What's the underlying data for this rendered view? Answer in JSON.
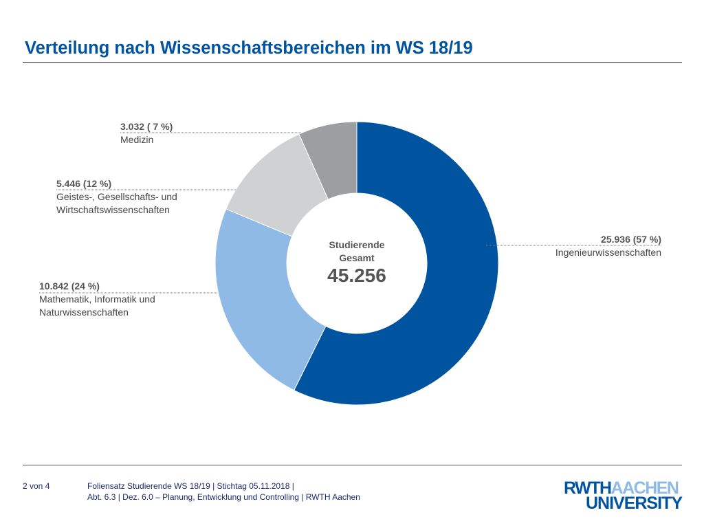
{
  "header": {
    "title": "Verteilung nach Wissenschaftsbereichen im WS 18/19"
  },
  "chart_data": {
    "type": "pie",
    "title": "Verteilung nach Wissenschaftsbereichen im WS 18/19",
    "center_caption_line1": "Studierende",
    "center_caption_line2": "Gesamt",
    "center_value": "45.256",
    "total": 45256,
    "slices": [
      {
        "name": "Ingenieurwissenschaften",
        "value": 25936,
        "percent": 57,
        "value_label": "25.936 (57 %)",
        "color": "#00549f"
      },
      {
        "name": "Mathematik, Informatik und Naturwissenschaften",
        "name_line1": "Mathematik, Informatik und",
        "name_line2": "Naturwissenschaften",
        "value": 10842,
        "percent": 24,
        "value_label": "10.842 (24 %)",
        "color": "#8ebae5"
      },
      {
        "name": "Geistes-, Gesellschafts- und Wirtschaftswissenschaften",
        "name_line1": "Geistes-, Gesellschafts- und",
        "name_line2": "Wirtschaftswissenschaften",
        "value": 5446,
        "percent": 12,
        "value_label": "5.446 (12 %)",
        "color": "#cfd1d2"
      },
      {
        "name": "Medizin",
        "value": 3032,
        "percent": 7,
        "value_label": "3.032 ( 7 %)",
        "color": "#9c9e9f"
      }
    ]
  },
  "footer": {
    "page": "2 von 4",
    "line1": "Foliensatz Studierende WS 18/19  |  Stichtag 05.11.2018  |",
    "line2": "Abt. 6.3 | Dez. 6.0 – Planung, Entwicklung und Controlling | RWTH Aachen",
    "logo_part1": "RWTH",
    "logo_part2": "AACHEN",
    "logo_part3": "UNIVERSITY",
    "logo_dark_color": "#00549f",
    "logo_light_color": "#8ebae5"
  }
}
